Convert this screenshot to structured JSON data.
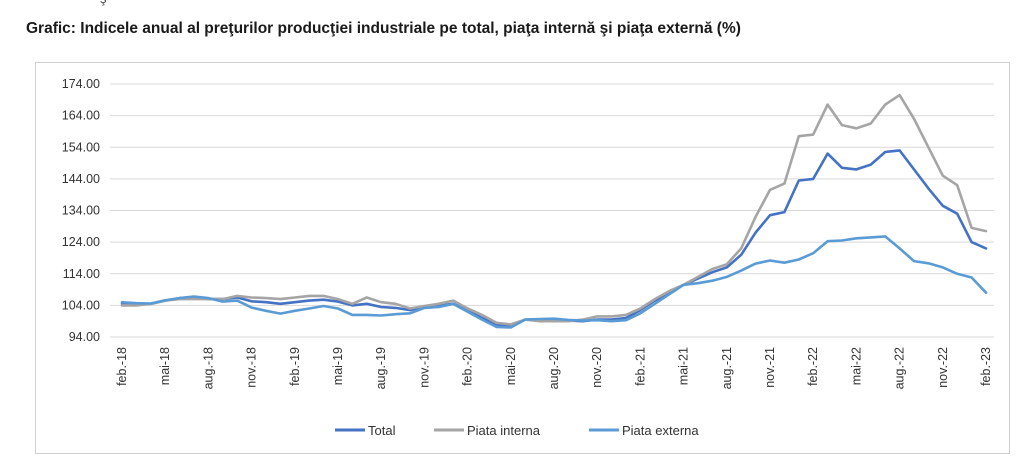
{
  "page": {
    "title": "Grafic: Indicele anual al preţurilor producţiei industriale pe total, piaţa internă şi piaţa externă (%)"
  },
  "chart_data": {
    "type": "line",
    "title": "Grafic: Indicele anual al preţurilor producţiei industriale pe total, piaţa internă şi piaţa externă (%)",
    "xlabel": "",
    "ylabel": "",
    "ylim": [
      94,
      174
    ],
    "yticks": [
      "94.00",
      "104.00",
      "114.00",
      "124.00",
      "134.00",
      "144.00",
      "154.00",
      "164.00",
      "174.00"
    ],
    "x": [
      "feb.-18",
      "mar.-18",
      "apr.-18",
      "mai-18",
      "iun.-18",
      "iul.-18",
      "aug.-18",
      "sep.-18",
      "oct.-18",
      "nov.-18",
      "dec.-18",
      "ian.-19",
      "feb.-19",
      "mar.-19",
      "apr.-19",
      "mai-19",
      "iun.-19",
      "iul.-19",
      "aug.-19",
      "sep.-19",
      "oct.-19",
      "nov.-19",
      "dec.-19",
      "ian.-20",
      "feb.-20",
      "mar.-20",
      "apr.-20",
      "mai-20",
      "iun.-20",
      "iul.-20",
      "aug.-20",
      "sep.-20",
      "oct.-20",
      "nov.-20",
      "dec.-20",
      "ian.-21",
      "feb.-21",
      "mar.-21",
      "apr.-21",
      "mai-21",
      "iun.-21",
      "iul.-21",
      "aug.-21",
      "sep.-21",
      "oct.-21",
      "nov.-21",
      "dec.-21",
      "ian.-22",
      "feb.-22",
      "mar.-22",
      "apr.-22",
      "mai-22",
      "iun.-22",
      "iul.-22",
      "aug.-22",
      "sep.-22",
      "oct.-22",
      "nov.-22",
      "dec.-22",
      "ian.-23",
      "feb.-23"
    ],
    "xticks": [
      "feb.-18",
      "mai-18",
      "aug.-18",
      "nov.-18",
      "feb.-19",
      "mai-19",
      "aug.-19",
      "nov.-19",
      "feb.-20",
      "mai-20",
      "aug.-20",
      "nov.-20",
      "feb.-21",
      "mai-21",
      "aug.-21",
      "nov.-21",
      "feb.-22",
      "mai-22",
      "aug.-22",
      "nov.-22",
      "feb.-23"
    ],
    "legend_position": "bottom",
    "grid": "horizontal",
    "series": [
      {
        "name": "Total",
        "color": "#4472c4",
        "values": [
          104.5,
          104.3,
          104.5,
          105.5,
          106.3,
          106.6,
          106.0,
          106.0,
          106.5,
          105.3,
          105.0,
          104.5,
          105.0,
          105.5,
          105.8,
          105.2,
          104.0,
          104.5,
          103.5,
          103.2,
          102.5,
          103.5,
          104.0,
          104.5,
          102.5,
          100.0,
          98.0,
          97.5,
          99.5,
          99.5,
          99.5,
          99.2,
          99.0,
          99.5,
          99.5,
          100.0,
          102.5,
          105.5,
          108.0,
          110.5,
          112.5,
          114.5,
          116.0,
          120.0,
          127.0,
          132.5,
          133.5,
          143.5,
          144.0,
          152.0,
          147.5,
          147.0,
          148.5,
          152.5,
          153.0,
          147.0,
          141.0,
          135.5,
          133.0,
          124.0,
          122.0
        ]
      },
      {
        "name": "Piata interna",
        "color": "#a5a5a5",
        "values": [
          104.0,
          104.0,
          104.5,
          105.5,
          106.0,
          106.0,
          106.0,
          106.0,
          107.0,
          106.5,
          106.3,
          106.0,
          106.5,
          107.0,
          107.0,
          106.0,
          104.5,
          106.5,
          105.0,
          104.5,
          103.0,
          103.8,
          104.5,
          105.5,
          103.0,
          101.0,
          98.5,
          98.0,
          99.5,
          99.0,
          99.0,
          99.0,
          99.5,
          100.5,
          100.5,
          101.0,
          103.0,
          106.0,
          108.5,
          110.5,
          113.0,
          115.5,
          117.0,
          122.0,
          132.0,
          140.5,
          142.5,
          157.5,
          158.0,
          167.5,
          161.0,
          160.0,
          161.5,
          167.5,
          170.5,
          163.0,
          154.0,
          145.0,
          142.0,
          128.5,
          127.5
        ]
      },
      {
        "name": "Piata externa",
        "color": "#5b9bd5",
        "values": [
          105.0,
          104.7,
          104.6,
          105.6,
          106.3,
          106.8,
          106.3,
          105.2,
          105.5,
          103.3,
          102.3,
          101.4,
          102.3,
          103.0,
          103.8,
          103.0,
          101.0,
          101.0,
          100.8,
          101.2,
          101.5,
          103.2,
          103.5,
          104.5,
          102.0,
          99.5,
          97.2,
          97.0,
          99.5,
          99.7,
          99.8,
          99.4,
          99.2,
          99.3,
          99.0,
          99.3,
          101.5,
          104.5,
          107.5,
          110.5,
          111.0,
          111.8,
          113.0,
          115.0,
          117.2,
          118.2,
          117.5,
          118.5,
          120.5,
          124.3,
          124.5,
          125.2,
          125.5,
          125.8,
          122.0,
          118.0,
          117.3,
          116.0,
          114.0,
          112.8,
          108.0
        ]
      }
    ]
  }
}
